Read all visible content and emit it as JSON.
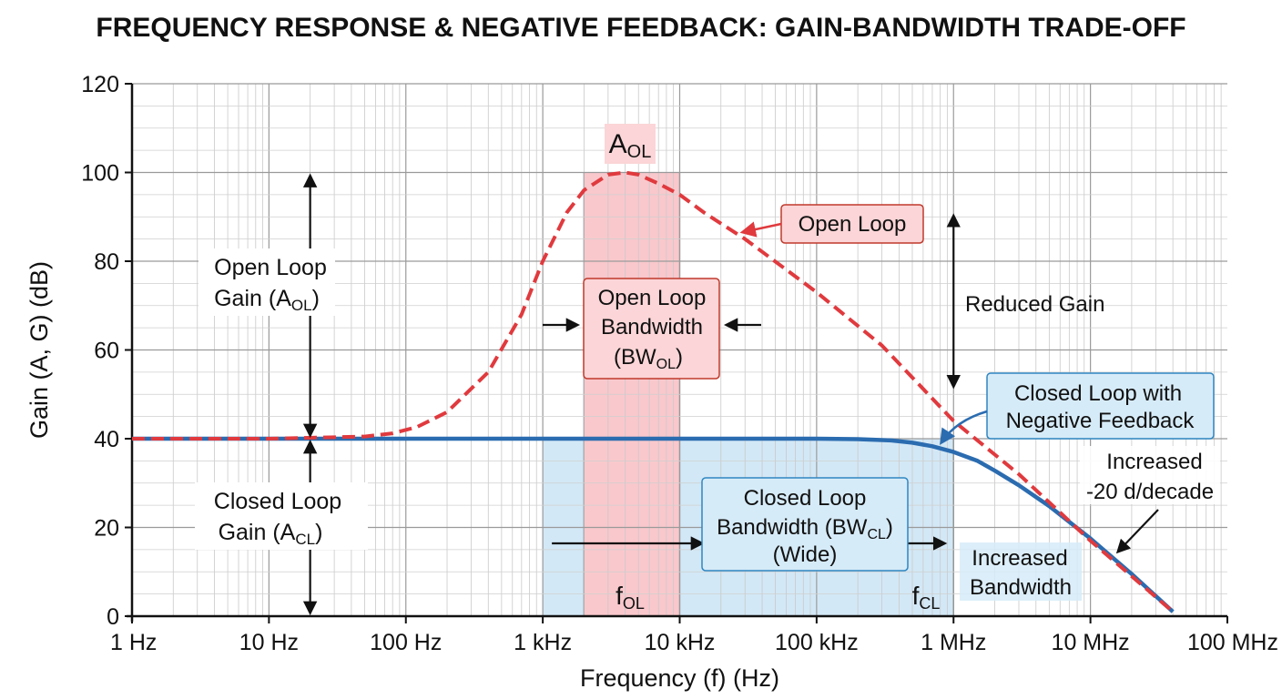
{
  "chart_data": {
    "type": "line",
    "title": "FREQUENCY RESPONSE & NEGATIVE FEEDBACK: GAIN-BANDWIDTH TRADE-OFF",
    "xlabel": "Frequency (f) (Hz)",
    "ylabel": "Gain (A, G) (dB)",
    "x_scale": "log",
    "xlim": [
      1,
      100000000
    ],
    "ylim": [
      0,
      120
    ],
    "grid": true,
    "x_ticks": [
      {
        "value": 1,
        "label": "1 Hz"
      },
      {
        "value": 10,
        "label": "10 Hz"
      },
      {
        "value": 100,
        "label": "100 Hz"
      },
      {
        "value": 1000,
        "label": "1 kHz"
      },
      {
        "value": 10000,
        "label": "10 kHz"
      },
      {
        "value": 100000,
        "label": "100 kHz"
      },
      {
        "value": 1000000,
        "label": "1 MHz"
      },
      {
        "value": 10000000,
        "label": "10 MHz"
      },
      {
        "value": 100000000,
        "label": "100 MHz"
      }
    ],
    "y_ticks": [
      0,
      20,
      40,
      60,
      80,
      100,
      120
    ],
    "series": [
      {
        "name": "Open Loop",
        "style": "dashed",
        "color": "#e03a3e",
        "x": [
          1,
          10,
          50,
          80,
          120,
          200,
          400,
          700,
          1000,
          1500,
          2000,
          3000,
          4000,
          5000,
          7000,
          10000,
          15000,
          30000,
          100000,
          300000,
          1000000,
          3000000,
          10000000,
          20000000,
          40000000
        ],
        "y": [
          40,
          40,
          40.5,
          41.2,
          42.6,
          46,
          55,
          68,
          80,
          91,
          96,
          99.5,
          100,
          99.5,
          97.5,
          95,
          91,
          85,
          73,
          61,
          44,
          32,
          17,
          9,
          1
        ]
      },
      {
        "name": "Closed Loop with Negative Feedback",
        "style": "solid",
        "color": "#2b6cb0",
        "x": [
          1,
          10,
          100,
          1000,
          10000,
          100000,
          200000,
          350000,
          500000,
          700000,
          1000000,
          1500000,
          2000000,
          3000000,
          5000000,
          10000000,
          20000000,
          40000000
        ],
        "y": [
          40,
          40,
          40,
          40,
          40,
          40,
          39.9,
          39.6,
          39.1,
          38.3,
          37,
          35,
          32.8,
          29.5,
          24.8,
          17.5,
          9.5,
          1
        ]
      }
    ],
    "bands": [
      {
        "name": "Open Loop Bandwidth",
        "x": [
          2000,
          10000
        ],
        "color": "#f9c8cc"
      },
      {
        "name": "Closed Loop Bandwidth",
        "x": [
          1000,
          1000000
        ],
        "color": "#d3e8f6"
      }
    ],
    "annotations": {
      "aol_peak": {
        "main": "A",
        "sub": "OL"
      },
      "open_loop_tag": "Open Loop",
      "open_loop_gain": {
        "line1": "Open Loop",
        "line2_pre": "Gain (A",
        "sub": "OL",
        "line2_post": ")"
      },
      "closed_loop_gain": {
        "line1": "Closed Loop",
        "line2_pre": "Gain (A",
        "sub": "CL",
        "line2_post": ")"
      },
      "open_loop_bw": {
        "line1": "Open Loop",
        "line2": "Bandwidth",
        "line3_pre": "(BW",
        "sub": "OL",
        "line3_post": ")"
      },
      "closed_loop_bw": {
        "line1": "Closed Loop",
        "line2_pre": "Bandwidth (BW",
        "sub": "CL",
        "line2_post": ")",
        "line3": "(Wide)"
      },
      "reduced_gain": "Reduced Gain",
      "closed_loop_neg_fb": {
        "line1": "Closed Loop with",
        "line2": "Negative Feedback"
      },
      "increased_slope": {
        "line1": "Increased",
        "line2": "-20 d/decade"
      },
      "increased_bw": {
        "line1": "Increased",
        "line2": "Bandwidth"
      },
      "f_ol": {
        "main": "f",
        "sub": "OL"
      },
      "f_cl": {
        "main": "f",
        "sub": "CL"
      }
    },
    "colors": {
      "open_loop": "#e03a3e",
      "closed_loop": "#2b6cb0",
      "red_fill": "#f9c8cc",
      "blue_fill": "#d3e8f6",
      "red_box_fill": "#fbd5d7",
      "blue_box_fill": "#d6ebf8",
      "red_box_stroke": "#c0392b",
      "blue_box_stroke": "#2e86c1"
    }
  }
}
